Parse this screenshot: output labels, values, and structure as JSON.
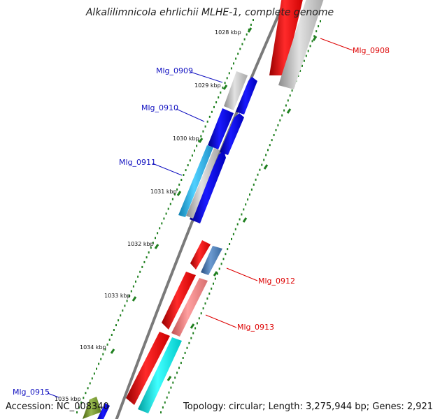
{
  "title": "Alkalilimnicola ehrlichii MLHE-1, complete genome",
  "accession": "Accession: NC_008340",
  "topology": "Topology: circular; Length: 3,275,944 bp; Genes: 2,921",
  "ticks": [
    "1028 kbp",
    "1029 kbp",
    "1030 kbp",
    "1031 kbp",
    "1032 kbp",
    "1033 kbp",
    "1034 kbp",
    "1035 kbp"
  ],
  "genes": [
    {
      "label": "Mlg_0908",
      "color": "#dd0000"
    },
    {
      "label": "Mlg_0909",
      "color": "#1010c0"
    },
    {
      "label": "Mlg_0910",
      "color": "#1010c0"
    },
    {
      "label": "Mlg_0911",
      "color": "#1010c0"
    },
    {
      "label": "Mlg_0912",
      "color": "#dd0000"
    },
    {
      "label": "Mlg_0913",
      "color": "#dd0000"
    },
    {
      "label": "Mlg_0915",
      "color": "#1010c0"
    }
  ],
  "colors": {
    "forward": "#ff0000",
    "reverse": "#0000ee",
    "cyan": "#00e8e8",
    "skyblue": "#33bbee",
    "steelblue": "#4a7ab8",
    "pink": "#f08080",
    "grey": "#b8b8b8",
    "olive": "#6b8e23",
    "tick_dots": "#208020",
    "backbone": "#808080"
  }
}
